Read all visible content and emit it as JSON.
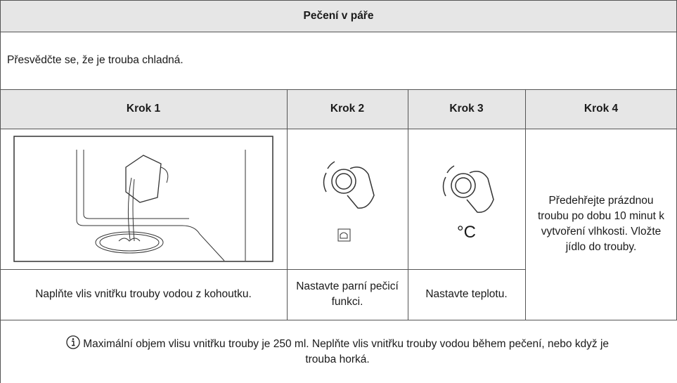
{
  "header": {
    "title": "Pečení v páře"
  },
  "note": "Přesvědčte se, že je trouba chladná.",
  "steps": [
    {
      "label": "Krok 1",
      "text": "Naplňte vlis vnitřku trouby vodou z kohoutku."
    },
    {
      "label": "Krok 2",
      "text": "Nastavte parní pečicí funkci."
    },
    {
      "label": "Krok 3",
      "text": "Nastavte teplotu.",
      "symbol": "°C"
    },
    {
      "label": "Krok 4",
      "text": "Předehřejte prázdnou troubu po dobu 10 minut k vytvoření vlhkosti. Vložte jídlo do trouby."
    }
  ],
  "footer": {
    "text": "Maximální objem vlisu vnitřku trouby je 250 ml. Neplňte vlis vnitřku trouby vodou během pečení, nebo když je trouba horká."
  }
}
